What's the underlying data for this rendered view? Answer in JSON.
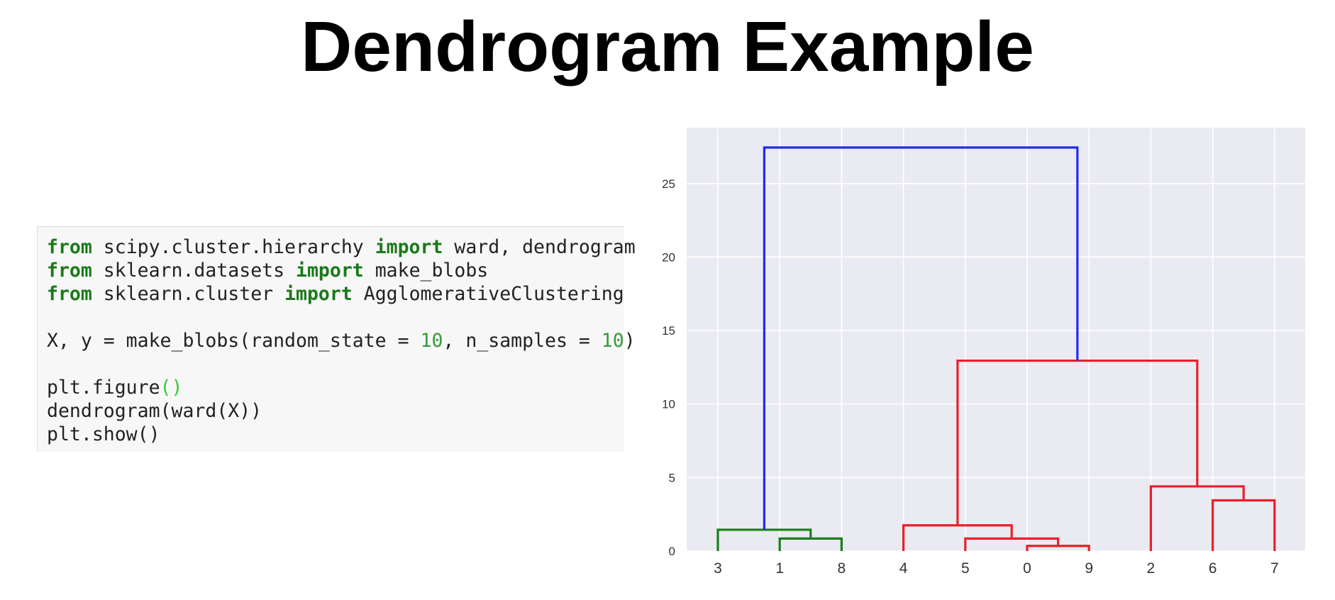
{
  "slide": {
    "title": "Dendrogram Example"
  },
  "code": {
    "lines": [
      [
        {
          "t": "from",
          "s": "kw"
        },
        {
          "t": " scipy.cluster.hierarchy "
        },
        {
          "t": "import",
          "s": "kw"
        },
        {
          "t": " ward, dendrogram"
        }
      ],
      [
        {
          "t": "from",
          "s": "kw"
        },
        {
          "t": " sklearn.datasets "
        },
        {
          "t": "import",
          "s": "kw"
        },
        {
          "t": " make_blobs"
        }
      ],
      [
        {
          "t": "from",
          "s": "kw"
        },
        {
          "t": " sklearn.cluster "
        },
        {
          "t": "import",
          "s": "kw"
        },
        {
          "t": " AgglomerativeClustering"
        }
      ],
      [],
      [
        {
          "t": "X, y = make_blobs(random_state = "
        },
        {
          "t": "10",
          "s": "num"
        },
        {
          "t": ", n_samples = "
        },
        {
          "t": "10",
          "s": "num"
        },
        {
          "t": ")"
        }
      ],
      [],
      [
        {
          "t": "plt.figure"
        },
        {
          "t": "()",
          "s": "paren"
        }
      ],
      [
        {
          "t": "dendrogram(ward(X))"
        }
      ],
      [
        {
          "t": "plt.show()"
        }
      ]
    ]
  },
  "chart_data": {
    "type": "dendrogram",
    "title": "",
    "xlabel": "",
    "ylabel": "",
    "ylim": [
      0,
      28.8
    ],
    "yticks": [
      0,
      5,
      10,
      15,
      20,
      25
    ],
    "grid": true,
    "background": "#eaeaf2",
    "leaf_order": [
      "3",
      "1",
      "8",
      "4",
      "5",
      "0",
      "9",
      "2",
      "6",
      "7"
    ],
    "colors": {
      "green_cluster": "#1a7f1a",
      "red_cluster": "#e8202a",
      "root": "#1f2bf0"
    },
    "merges": [
      {
        "left_x": 1,
        "right_x": 2,
        "height": 0.85,
        "left_h": 0,
        "right_h": 0,
        "color": "green"
      },
      {
        "left_x": 0,
        "right_x": 1.5,
        "height": 1.45,
        "left_h": 0,
        "right_h": 0.85,
        "color": "green"
      },
      {
        "left_x": 5,
        "right_x": 6,
        "height": 0.35,
        "left_h": 0,
        "right_h": 0,
        "color": "red"
      },
      {
        "left_x": 4,
        "right_x": 5.5,
        "height": 0.85,
        "left_h": 0,
        "right_h": 0.35,
        "color": "red"
      },
      {
        "left_x": 3,
        "right_x": 4.75,
        "height": 1.75,
        "left_h": 0,
        "right_h": 0.85,
        "color": "red"
      },
      {
        "left_x": 8,
        "right_x": 9,
        "height": 3.45,
        "left_h": 0,
        "right_h": 0,
        "color": "red"
      },
      {
        "left_x": 7,
        "right_x": 8.5,
        "height": 4.4,
        "left_h": 0,
        "right_h": 3.45,
        "color": "red"
      },
      {
        "left_x": 3.875,
        "right_x": 7.75,
        "height": 12.95,
        "left_h": 1.75,
        "right_h": 4.4,
        "color": "red"
      },
      {
        "left_x": 0.75,
        "right_x": 5.8125,
        "height": 27.45,
        "left_h": 1.45,
        "right_h": 12.95,
        "color": "root"
      }
    ]
  }
}
